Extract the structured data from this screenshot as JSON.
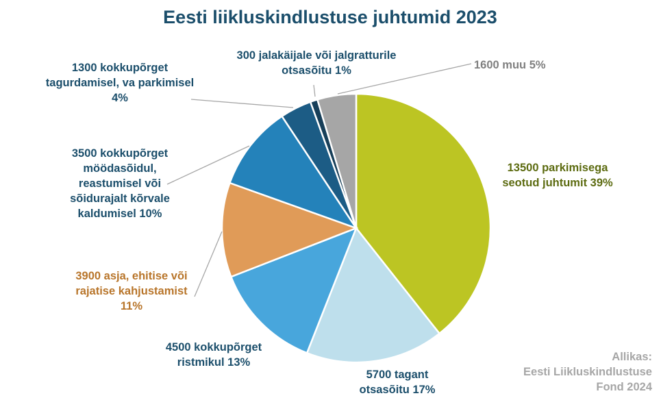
{
  "chart_data": {
    "type": "pie",
    "title": "Eesti liikluskindlustuse juhtumid 2023",
    "start_angle_deg": 0,
    "direction": "clockwise",
    "slices": [
      {
        "value": 13500,
        "percent": 39,
        "color": "#bcc523",
        "label_color": "#5c6b10",
        "label_lines": [
          "13500 parkimisega",
          "seotud juhtumit 39%"
        ]
      },
      {
        "value": 5700,
        "percent": 17,
        "color": "#bedfec",
        "label_color": "#1b4e6b",
        "label_lines": [
          "5700 tagant",
          "otsasõitu 17%"
        ]
      },
      {
        "value": 4500,
        "percent": 13,
        "color": "#48a6dc",
        "label_color": "#1b4e6b",
        "label_lines": [
          "4500 kokkupõrget",
          "ristmikul 13%"
        ]
      },
      {
        "value": 3900,
        "percent": 11,
        "color": "#e09b58",
        "label_color": "#b8752a",
        "label_lines": [
          "3900 asja, ehitise või",
          "rajatise kahjustamist",
          "11%"
        ]
      },
      {
        "value": 3500,
        "percent": 10,
        "color": "#2482ba",
        "label_color": "#1b4e6b",
        "label_lines": [
          "3500 kokkupõrget",
          "möödasõidul,",
          "reastumisel või",
          "sõidurajalt kõrvale",
          "kaldumisel 10%"
        ]
      },
      {
        "value": 1300,
        "percent": 4,
        "color": "#1c5c85",
        "label_color": "#1b4e6b",
        "label_lines": [
          "1300 kokkupõrget",
          "tagurdamisel, va parkimisel",
          "4%"
        ]
      },
      {
        "value": 300,
        "percent": 1,
        "color": "#173f59",
        "label_color": "#1b4e6b",
        "label_lines": [
          "300 jalakäijale või jalgratturile",
          "otsasõitu 1%"
        ]
      },
      {
        "value": 1600,
        "percent": 5,
        "color": "#a6a6a6",
        "label_color": "#7f7f7f",
        "label_lines": [
          "1600 muu 5%"
        ]
      }
    ]
  },
  "source": {
    "lines": [
      "Allikas:",
      "Eesti Liikluskindlustuse",
      "Fond 2024"
    ]
  }
}
